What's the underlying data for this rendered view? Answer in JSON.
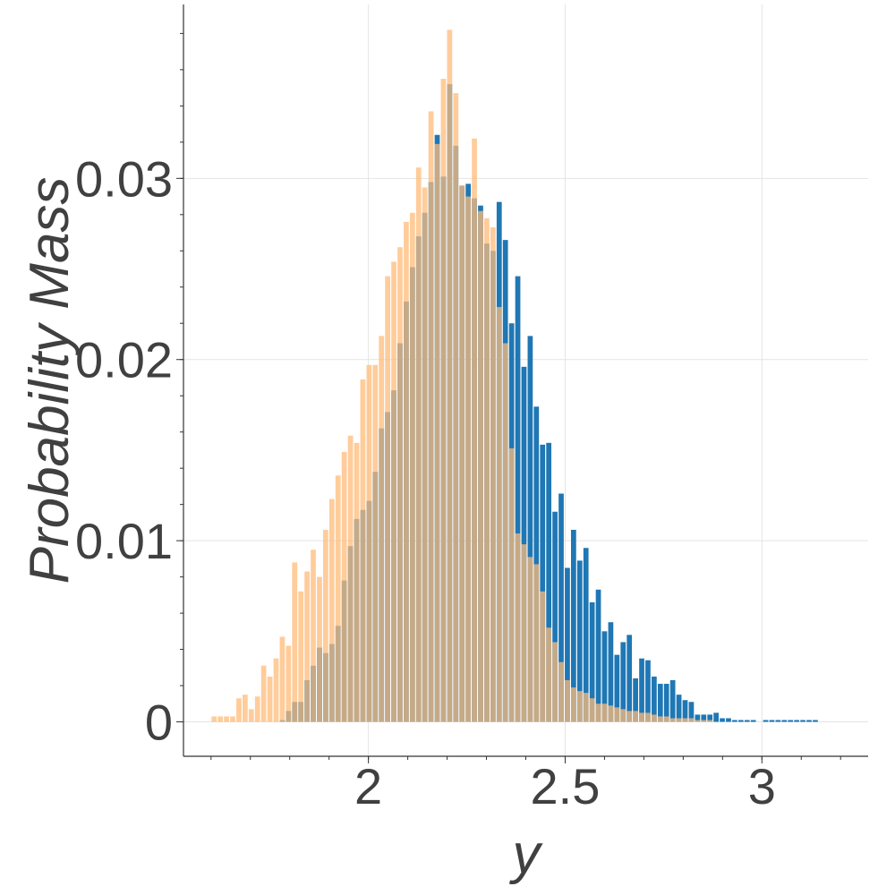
{
  "chart_data": {
    "type": "bar",
    "xlabel": "y",
    "ylabel": "Probability Mass",
    "xlim": [
      1.53,
      3.27
    ],
    "ylim": [
      -0.0019,
      0.0396
    ],
    "x_ticks": [
      2,
      2.5,
      3
    ],
    "x_tick_labels": [
      "2",
      "2.5",
      "3"
    ],
    "y_ticks": [
      0,
      0.01,
      0.02,
      0.03
    ],
    "y_tick_labels": [
      "0",
      "0.01",
      "0.02",
      "0.03"
    ],
    "x_minor_step": 0.1,
    "y_minor_step": 0.002,
    "grid": true,
    "bin_start": 1.6,
    "bin_width": 0.01575,
    "series": [
      {
        "color": "#1f77b4",
        "opacity": 1,
        "values": [
          0,
          0,
          0,
          0,
          0,
          0,
          0,
          0,
          0,
          0,
          0,
          0.0001,
          0.0006,
          0.0011,
          0.0011,
          0.0023,
          0.0031,
          0.0041,
          0.0038,
          0.0043,
          0.0053,
          0.0078,
          0.0097,
          0.0112,
          0.0117,
          0.0122,
          0.0138,
          0.0162,
          0.0171,
          0.0183,
          0.0209,
          0.0232,
          0.0251,
          0.0268,
          0.0281,
          0.0298,
          0.0324,
          0.0301,
          0.0352,
          0.0318,
          0.0296,
          0.0297,
          0.0289,
          0.0285,
          0.0264,
          0.026,
          0.0287,
          0.0266,
          0.022,
          0.0246,
          0.0196,
          0.0213,
          0.0174,
          0.0153,
          0.0154,
          0.0116,
          0.0126,
          0.0085,
          0.0106,
          0.0089,
          0.0096,
          0.0066,
          0.0073,
          0.005,
          0.0055,
          0.0037,
          0.0044,
          0.0048,
          0.0024,
          0.0035,
          0.0034,
          0.0025,
          0.0021,
          0.0021,
          0.0023,
          0.0015,
          0.0012,
          0.0011,
          0.0004,
          0.0004,
          0.0004,
          0.0005,
          0.0002,
          0.0002,
          0.0001,
          0.0001,
          0.0001,
          0.0001,
          0.0,
          0.0001,
          0.0001,
          0.0001,
          0.0001,
          0.0001,
          0.0001,
          0.0001,
          0.0001,
          0.0001
        ]
      },
      {
        "color": "#ffbb78",
        "opacity": 0.75,
        "values": [
          0.0003,
          0.0003,
          0.0003,
          0.0003,
          0.0013,
          0.0015,
          0.0007,
          0.0014,
          0.0031,
          0.0025,
          0.0035,
          0.0047,
          0.0042,
          0.0088,
          0.0072,
          0.0083,
          0.0095,
          0.008,
          0.0106,
          0.0123,
          0.0136,
          0.0149,
          0.0158,
          0.0154,
          0.0189,
          0.0197,
          0.0197,
          0.0213,
          0.0246,
          0.0254,
          0.0262,
          0.0276,
          0.0281,
          0.0306,
          0.0295,
          0.0337,
          0.0319,
          0.0355,
          0.0382,
          0.0347,
          0.0296,
          0.029,
          0.0322,
          0.0282,
          0.0278,
          0.0273,
          0.0229,
          0.0209,
          0.0151,
          0.0104,
          0.0098,
          0.0091,
          0.0087,
          0.0072,
          0.0052,
          0.0044,
          0.0033,
          0.0023,
          0.0019,
          0.0017,
          0.0016,
          0.0013,
          0.001,
          0.001,
          0.0009,
          0.0008,
          0.0007,
          0.0006,
          0.0006,
          0.0005,
          0.0005,
          0.0004,
          0.0003,
          0.0003,
          0.0002,
          0.0002,
          0.0002,
          0.0002,
          0.0001,
          0.0001,
          0.0001
        ]
      }
    ]
  }
}
